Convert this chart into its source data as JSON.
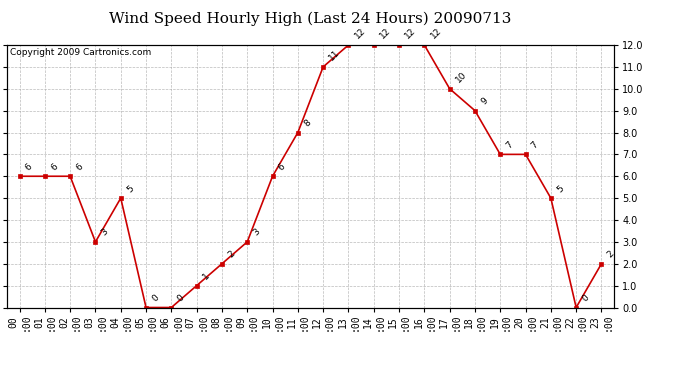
{
  "title": "Wind Speed Hourly High (Last 24 Hours) 20090713",
  "copyright": "Copyright 2009 Cartronics.com",
  "hours": [
    "00:00",
    "01:00",
    "02:00",
    "03:00",
    "04:00",
    "05:00",
    "06:00",
    "07:00",
    "08:00",
    "09:00",
    "10:00",
    "11:00",
    "12:00",
    "13:00",
    "14:00",
    "15:00",
    "16:00",
    "17:00",
    "18:00",
    "19:00",
    "20:00",
    "21:00",
    "22:00",
    "23:00"
  ],
  "values": [
    6,
    6,
    6,
    3,
    5,
    0,
    0,
    1,
    2,
    3,
    6,
    8,
    11,
    12,
    12,
    12,
    12,
    10,
    9,
    7,
    7,
    5,
    0,
    2
  ],
  "line_color": "#cc0000",
  "marker_color": "#cc0000",
  "bg_color": "#ffffff",
  "plot_bg_color": "#ffffff",
  "grid_color": "#aaaaaa",
  "ylim": [
    0.0,
    12.0
  ],
  "yticks": [
    0.0,
    1.0,
    2.0,
    3.0,
    4.0,
    5.0,
    6.0,
    7.0,
    8.0,
    9.0,
    10.0,
    11.0,
    12.0
  ],
  "title_fontsize": 11,
  "copyright_fontsize": 6.5,
  "label_fontsize": 6.5,
  "tick_fontsize": 7
}
